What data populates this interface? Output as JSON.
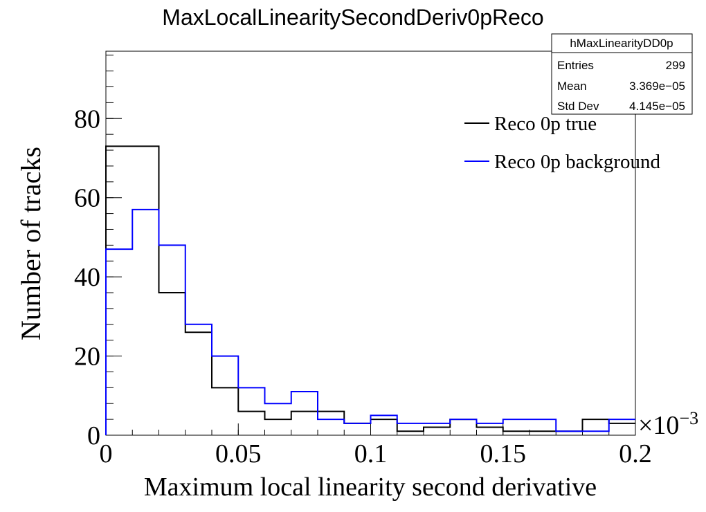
{
  "chart_data": {
    "type": "line",
    "title": "MaxLocalLinearitySecondDeriv0pReco",
    "xlabel": "Maximum local linearity second derivative",
    "ylabel": "Number of tracks",
    "x_multiplier": "×10",
    "x_exponent": "−3",
    "xlim": [
      0,
      0.2
    ],
    "ylim": [
      0,
      97
    ],
    "xticks": [
      0,
      0.05,
      0.1,
      0.15,
      0.2
    ],
    "xtick_labels": [
      "0",
      "0.05",
      "0.1",
      "0.15",
      "0.2"
    ],
    "yticks": [
      0,
      20,
      40,
      60,
      80
    ],
    "ytick_labels": [
      "0",
      "20",
      "40",
      "60",
      "80"
    ],
    "bin_edges": [
      0,
      0.01,
      0.02,
      0.03,
      0.04,
      0.05,
      0.06,
      0.07,
      0.08,
      0.09,
      0.1,
      0.11,
      0.12,
      0.13,
      0.14,
      0.15,
      0.16,
      0.17,
      0.18,
      0.19,
      0.2
    ],
    "series": [
      {
        "name": "Reco 0p true",
        "color": "#000000",
        "values": [
          73,
          73,
          36,
          26,
          12,
          6,
          4,
          6,
          6,
          3,
          4,
          1,
          2,
          4,
          2,
          1,
          1,
          1,
          4,
          3
        ]
      },
      {
        "name": "Reco 0p background",
        "color": "#0000ff",
        "values": [
          47,
          57,
          48,
          28,
          20,
          12,
          8,
          11,
          4,
          3,
          5,
          3,
          3,
          4,
          3,
          4,
          4,
          1,
          1,
          4
        ]
      }
    ],
    "stats_box": {
      "name": "hMaxLinearityDD0p",
      "rows": [
        {
          "label": "Entries",
          "value": "299"
        },
        {
          "label": "Mean",
          "value": "3.369e−05"
        },
        {
          "label": "Std Dev",
          "value": "4.145e−05"
        }
      ]
    },
    "legend_position": "top-right",
    "grid": false
  }
}
